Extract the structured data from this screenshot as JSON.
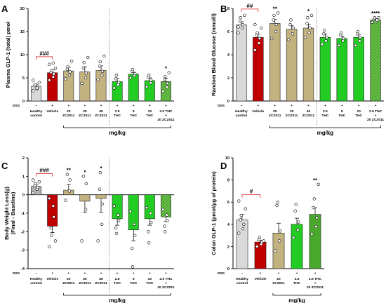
{
  "chart_data": [
    {
      "panel": "A",
      "type": "bar",
      "ylabel": "Plasma GLP-1 (total) pmol",
      "ylim": [
        0,
        20
      ],
      "yticks": [
        0,
        5,
        10,
        15,
        20
      ],
      "dss_label": "DSS",
      "unit_label": "mg/kg",
      "grid": false,
      "categories": [
        {
          "dss": "–",
          "lines": [
            "Healthy",
            "control"
          ]
        },
        {
          "dss": "+",
          "lines": [
            "Vehicle"
          ]
        },
        {
          "dss": "+",
          "lines": [
            "20",
            "ZCZ011"
          ]
        },
        {
          "dss": "+",
          "lines": [
            "30",
            "ZCZ011"
          ]
        },
        {
          "dss": "+",
          "lines": [
            "40",
            "ZCZ011"
          ]
        },
        {
          "dss": "+",
          "lines": [
            "2.5",
            "THC"
          ]
        },
        {
          "dss": "+",
          "lines": [
            "5",
            "THC"
          ]
        },
        {
          "dss": "+",
          "lines": [
            "10",
            "THC"
          ]
        },
        {
          "dss": "+",
          "lines": [
            "2.5 THC",
            "+",
            "20 ZCZ011"
          ]
        }
      ],
      "values": [
        3.2,
        6.1,
        6.5,
        6.3,
        6.6,
        4.2,
        5.8,
        4.4,
        4.2
      ],
      "errors": [
        0.4,
        0.6,
        0.8,
        1.1,
        1.0,
        0.7,
        0.4,
        0.6,
        0.7
      ],
      "points": [
        [
          2.2,
          2.6,
          3.0,
          3.3,
          3.6,
          4.0,
          4.5,
          2.8
        ],
        [
          4.5,
          5.2,
          5.8,
          6.2,
          6.6,
          7.1,
          7.9,
          8.2
        ],
        [
          4.8,
          5.6,
          6.3,
          6.9,
          7.4,
          8.6
        ],
        [
          3.8,
          5.0,
          6.0,
          7.1,
          8.3,
          9.4
        ],
        [
          4.6,
          5.5,
          6.4,
          7.5,
          8.5,
          9.7
        ],
        [
          2.8,
          3.5,
          4.0,
          4.8,
          5.6
        ],
        [
          5.0,
          5.5,
          5.9,
          6.4,
          6.8
        ],
        [
          3.1,
          3.9,
          4.5,
          5.2,
          5.6
        ],
        [
          2.1,
          3.0,
          3.8,
          4.6,
          5.3,
          6.1
        ]
      ],
      "colors": [
        "#d9d9d9",
        "#c00000",
        "#c2b280",
        "#c2b280",
        "#c2b280",
        "#22cc22",
        "#22cc22",
        "#22cc22",
        "#4aa82c"
      ],
      "hatched": [
        false,
        false,
        false,
        false,
        false,
        false,
        false,
        false,
        true
      ],
      "dashed_after": 4,
      "significance": [
        {
          "x": 8,
          "text": "*",
          "color": "#000000"
        }
      ],
      "bracket": {
        "from": 0,
        "to": 1,
        "text": "###",
        "color": "#e02020"
      },
      "unit_span": [
        2,
        8
      ]
    },
    {
      "panel": "B",
      "type": "bar",
      "ylabel": "Random Blood Glucose (mmol/l)",
      "ylim": [
        0,
        8
      ],
      "yticks": [
        0,
        2,
        4,
        6,
        8
      ],
      "dss_label": "DSS",
      "unit_label": "mg/kg",
      "grid": false,
      "categories": [
        {
          "dss": "–",
          "lines": [
            "Healthy",
            "control"
          ]
        },
        {
          "dss": "+",
          "lines": [
            "Vehicle"
          ]
        },
        {
          "dss": "+",
          "lines": [
            "20",
            "ZCZ011"
          ]
        },
        {
          "dss": "+",
          "lines": [
            "30",
            "ZCZ011"
          ]
        },
        {
          "dss": "+",
          "lines": [
            "40",
            "ZCZ011"
          ]
        },
        {
          "dss": "+",
          "lines": [
            "2.5",
            "THC"
          ]
        },
        {
          "dss": "+",
          "lines": [
            "5",
            "THC"
          ]
        },
        {
          "dss": "+",
          "lines": [
            "10",
            "THC"
          ]
        },
        {
          "dss": "+",
          "lines": [
            "2.5 THC",
            "+",
            "20 ZCZ011"
          ]
        }
      ],
      "values": [
        6.6,
        5.5,
        6.7,
        6.2,
        6.3,
        5.5,
        5.4,
        5.5,
        7.0
      ],
      "errors": [
        0.25,
        0.3,
        0.35,
        0.3,
        0.35,
        0.3,
        0.2,
        0.25,
        0.12
      ],
      "points": [
        [
          5.9,
          6.3,
          6.6,
          6.9,
          7.2,
          7.4,
          6.4
        ],
        [
          4.4,
          5.0,
          5.4,
          5.7,
          5.9,
          6.3,
          6.6
        ],
        [
          5.4,
          6.0,
          6.6,
          7.0,
          7.4,
          7.6
        ],
        [
          5.3,
          5.8,
          6.3,
          6.6,
          7.0
        ],
        [
          5.5,
          5.9,
          6.3,
          6.7,
          7.2,
          7.4
        ],
        [
          4.9,
          5.2,
          5.5,
          5.8,
          6.1
        ],
        [
          4.8,
          5.2,
          5.4,
          5.7,
          5.9
        ],
        [
          4.8,
          5.2,
          5.5,
          5.8,
          6.0
        ],
        [
          6.8,
          6.9,
          7.0,
          7.1,
          7.2,
          7.2
        ]
      ],
      "colors": [
        "#d9d9d9",
        "#c00000",
        "#c2b280",
        "#c2b280",
        "#c2b280",
        "#22cc22",
        "#22cc22",
        "#22cc22",
        "#4aa82c"
      ],
      "hatched": [
        false,
        false,
        false,
        false,
        false,
        false,
        false,
        false,
        true
      ],
      "dashed_after": 4,
      "significance": [
        {
          "x": 2,
          "text": "**",
          "color": "#000000"
        },
        {
          "x": 4,
          "text": "*",
          "color": "#000000"
        },
        {
          "x": 8,
          "text": "****",
          "color": "#000000"
        }
      ],
      "bracket": {
        "from": 0,
        "to": 1,
        "text": "##",
        "color": "#e02020"
      },
      "unit_span": [
        2,
        8
      ]
    },
    {
      "panel": "C",
      "type": "bar",
      "ylabel": "Body Weight Loss(g)",
      "ylabel2": "(Final - Baseline)",
      "ylim": [
        -4,
        2
      ],
      "yticks": [
        -4,
        -3,
        -2,
        -1,
        0,
        1,
        2
      ],
      "zero_axis": true,
      "dss_label": "DSS",
      "unit_label": "mg/kg",
      "grid": false,
      "categories": [
        {
          "dss": "–",
          "lines": [
            "Healthy",
            "control"
          ]
        },
        {
          "dss": "+",
          "lines": [
            "Vehicle"
          ]
        },
        {
          "dss": "+",
          "lines": [
            "20",
            "ZCZ011"
          ]
        },
        {
          "dss": "+",
          "lines": [
            "30",
            "ZCZ011"
          ]
        },
        {
          "dss": "+",
          "lines": [
            "40",
            "ZCZ011"
          ]
        },
        {
          "dss": "+",
          "lines": [
            "2.5",
            "THC"
          ]
        },
        {
          "dss": "+",
          "lines": [
            "5",
            "THC"
          ]
        },
        {
          "dss": "+",
          "lines": [
            "10",
            "THC"
          ]
        },
        {
          "dss": "+",
          "lines": [
            "2.5 THC",
            "+",
            "20 ZCZ011"
          ]
        }
      ],
      "values": [
        0.45,
        -1.7,
        0.25,
        -0.35,
        -0.2,
        -1.3,
        -1.9,
        -1.3,
        -1.2
      ],
      "errors": [
        0.12,
        0.35,
        0.3,
        0.6,
        0.75,
        0.35,
        0.6,
        0.35,
        0.25
      ],
      "points": [
        [
          0.1,
          0.3,
          0.4,
          0.5,
          0.6,
          0.7,
          0.8
        ],
        [
          -0.2,
          -0.6,
          -1.2,
          -1.8,
          -2.2,
          -2.5,
          -2.8
        ],
        [
          -0.3,
          0.2,
          0.8,
          1.1
        ],
        [
          -2.5,
          -0.8,
          0.6,
          1.0
        ],
        [
          -2.5,
          -1.6,
          -0.5,
          0.3,
          1.2
        ],
        [
          -0.6,
          -1.1,
          -1.4,
          -1.8,
          -2.1
        ],
        [
          -0.9,
          -1.6,
          -2.2,
          -2.9,
          -3.9
        ],
        [
          -0.7,
          -1.0,
          -1.5,
          -2.0,
          -2.6
        ],
        [
          -0.8,
          -1.1,
          -1.4,
          -1.7,
          -2.0
        ]
      ],
      "colors": [
        "#b0b0b0",
        "#c00000",
        "#c2b280",
        "#c2b280",
        "#c2b280",
        "#22cc22",
        "#22cc22",
        "#22cc22",
        "#4aa82c"
      ],
      "hatched": [
        false,
        false,
        false,
        false,
        false,
        false,
        false,
        false,
        true
      ],
      "dashed_after": 4,
      "significance": [
        {
          "x": 2,
          "text": "**",
          "color": "#000000"
        },
        {
          "x": 3,
          "text": "*",
          "color": "#000000"
        },
        {
          "x": 4,
          "text": "*",
          "color": "#000000"
        }
      ],
      "bracket": {
        "from": 0,
        "to": 1,
        "text": "###",
        "color": "#e02020"
      },
      "unit_span": [
        2,
        8
      ]
    },
    {
      "panel": "D",
      "type": "bar",
      "ylabel": "Colon GLP-1 (pmol/µg of protein)",
      "ylim": [
        0,
        10
      ],
      "yticks": [
        0,
        2,
        4,
        6,
        8,
        10
      ],
      "dss_label": "DSS",
      "unit_label": "mg/kg",
      "grid": false,
      "categories": [
        {
          "dss": "–",
          "lines": [
            "Healthy",
            "control"
          ]
        },
        {
          "dss": "+",
          "lines": [
            "Vehicle"
          ]
        },
        {
          "dss": "+",
          "lines": [
            "20",
            "ZCZ011"
          ]
        },
        {
          "dss": "+",
          "lines": [
            "2.5",
            "THC"
          ]
        },
        {
          "dss": "+",
          "lines": [
            "2.5 THC",
            "+",
            "20 ZCZ011"
          ]
        }
      ],
      "values": [
        4.4,
        2.4,
        3.2,
        4.0,
        4.9
      ],
      "errors": [
        0.5,
        0.15,
        0.9,
        0.55,
        0.6
      ],
      "points": [
        [
          3.2,
          3.6,
          4.0,
          4.4,
          4.8,
          5.4,
          6.1
        ],
        [
          2.0,
          2.2,
          2.4,
          2.6,
          2.8,
          2.5
        ],
        [
          1.6,
          2.5,
          3.4,
          5.7,
          6.0
        ],
        [
          2.8,
          3.5,
          4.2,
          5.2,
          5.8
        ],
        [
          3.1,
          3.8,
          4.6,
          5.5,
          6.3,
          7.6
        ]
      ],
      "colors": [
        "#d9d9d9",
        "#c00000",
        "#c2b280",
        "#22cc22",
        "#4aa82c"
      ],
      "hatched": [
        false,
        false,
        false,
        false,
        false
      ],
      "dashed_after": null,
      "significance": [
        {
          "x": 4,
          "text": "**",
          "color": "#000000"
        }
      ],
      "bracket": {
        "from": 0,
        "to": 1,
        "text": "#",
        "color": "#e02020"
      },
      "unit_span": [
        2,
        4
      ]
    }
  ]
}
